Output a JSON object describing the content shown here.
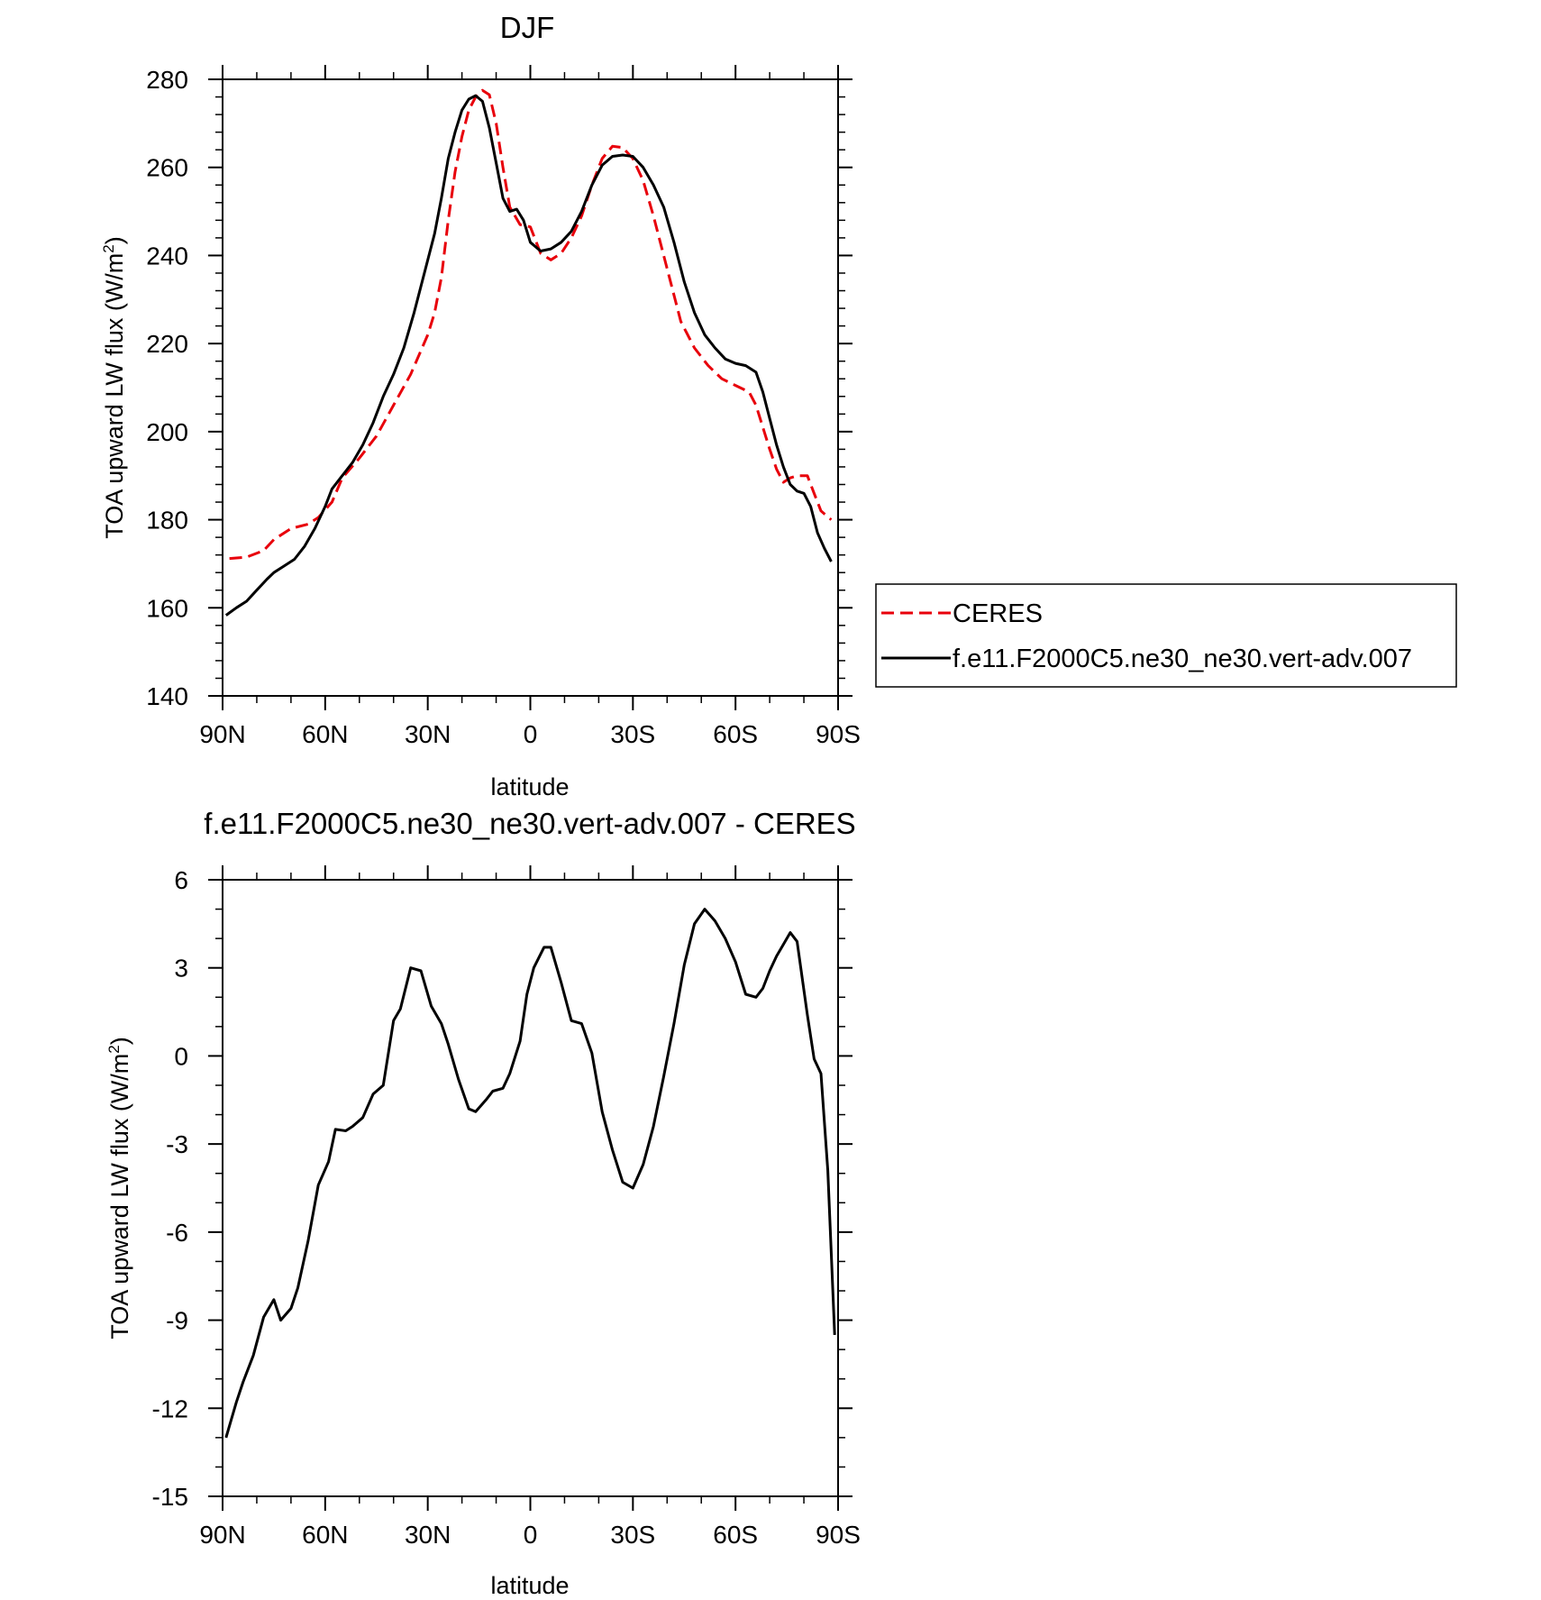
{
  "chart_data": [
    {
      "type": "line",
      "title": "DJF",
      "xlabel": "latitude",
      "ylabel_main": "TOA upward LW flux (W/m",
      "ylabel_sup": "2",
      "ylabel_close": ")",
      "xlim": [
        -90,
        90
      ],
      "ylim": [
        140,
        280
      ],
      "x_ticks": [
        -90,
        -60,
        -30,
        0,
        30,
        60,
        90
      ],
      "x_tick_labels": [
        "90N",
        "60N",
        "30N",
        "0",
        "30S",
        "60S",
        "90S"
      ],
      "y_ticks": [
        140,
        160,
        180,
        200,
        220,
        240,
        260,
        280
      ],
      "y_tick_labels": [
        "140",
        "160",
        "180",
        "200",
        "220",
        "240",
        "260",
        "280"
      ],
      "legend_position": "right",
      "series": [
        {
          "name": "CERES",
          "color": "#e8000b",
          "dash": "dashed",
          "x": [
            -88,
            -83,
            -78,
            -75,
            -70,
            -65,
            -62,
            -58,
            -55,
            -50,
            -45,
            -40,
            -35,
            -30,
            -28,
            -26,
            -24,
            -22,
            -20,
            -18,
            -16,
            -14,
            -12,
            -10,
            -8,
            -6,
            -3,
            0,
            3,
            6,
            9,
            12,
            15,
            18,
            21,
            24,
            27,
            30,
            33,
            36,
            40,
            44,
            48,
            52,
            56,
            60,
            64,
            66,
            68,
            70,
            72,
            74,
            76,
            78,
            81,
            83,
            85,
            88
          ],
          "y": [
            171.2,
            171.5,
            173,
            175.5,
            178,
            179,
            180.5,
            184,
            189.5,
            194,
            199,
            206,
            213,
            222,
            227,
            235,
            248,
            259,
            267,
            273,
            276,
            277.5,
            276.5,
            270,
            260,
            251,
            247,
            246.5,
            240.5,
            239,
            240.5,
            244,
            249,
            256,
            262,
            264.8,
            264.5,
            262,
            257,
            249,
            237,
            225,
            219,
            215,
            212,
            210.5,
            209,
            206,
            201,
            196,
            191.5,
            188.5,
            189.5,
            190,
            190,
            186,
            182,
            180
          ]
        },
        {
          "name": "f.e11.F2000C5.ne30_ne30.vert-adv.007",
          "color": "#000000",
          "dash": "solid",
          "x": [
            -89,
            -86,
            -83,
            -80,
            -77,
            -75,
            -72,
            -69,
            -66,
            -63,
            -60,
            -58,
            -55,
            -52,
            -49,
            -46,
            -43,
            -40,
            -37,
            -34,
            -31,
            -28,
            -26,
            -24,
            -22,
            -20,
            -18,
            -16,
            -14,
            -12,
            -10,
            -8,
            -6,
            -4,
            -2,
            0,
            3,
            6,
            9,
            12,
            15,
            18,
            21,
            24,
            27,
            30,
            33,
            36,
            39,
            42,
            45,
            48,
            51,
            54,
            57,
            60,
            63,
            66,
            68,
            70,
            72,
            74,
            76,
            78,
            80,
            82,
            84,
            86,
            88
          ],
          "y": [
            158.3,
            160,
            161.5,
            164,
            166.5,
            168,
            169.5,
            171,
            174,
            178,
            183,
            187,
            190,
            193,
            197,
            202,
            208,
            213,
            219,
            227,
            236,
            245,
            253,
            262,
            268,
            273,
            275.5,
            276.3,
            275,
            269,
            261,
            253,
            250,
            250.5,
            248,
            243,
            241,
            241.5,
            243,
            245.5,
            250,
            256,
            260.5,
            262.5,
            262.8,
            262.5,
            260,
            256,
            251,
            243,
            234,
            227,
            222,
            219,
            216.5,
            215.5,
            215,
            213.5,
            209,
            203,
            197,
            192,
            188,
            186.5,
            186,
            183,
            177,
            173.5,
            170.5
          ]
        }
      ]
    },
    {
      "type": "line",
      "title": "f.e11.F2000C5.ne30_ne30.vert-adv.007 - CERES",
      "xlabel": "latitude",
      "ylabel_main": "TOA upward LW flux (W/m",
      "ylabel_sup": "2",
      "ylabel_close": ")",
      "xlim": [
        -90,
        90
      ],
      "ylim": [
        -15,
        6
      ],
      "x_ticks": [
        -90,
        -60,
        -30,
        0,
        30,
        60,
        90
      ],
      "x_tick_labels": [
        "90N",
        "60N",
        "30N",
        "0",
        "30S",
        "60S",
        "90S"
      ],
      "y_ticks": [
        -15,
        -12,
        -9,
        -6,
        -3,
        0,
        3,
        6
      ],
      "y_tick_labels": [
        "-15",
        "-12",
        "-9",
        "-6",
        "-3",
        "0",
        "3",
        "6"
      ],
      "series": [
        {
          "color": "#000000",
          "dash": "solid",
          "x": [
            -89,
            -86,
            -84,
            -81,
            -78,
            -75,
            -73,
            -70,
            -68,
            -65,
            -62,
            -59,
            -57,
            -54,
            -52,
            -49,
            -46,
            -43,
            -40,
            -38,
            -35,
            -32,
            -29,
            -26,
            -24,
            -21,
            -18,
            -16,
            -13,
            -11,
            -8,
            -6,
            -3,
            -1,
            1,
            4,
            6,
            9,
            12,
            15,
            18,
            21,
            24,
            27,
            30,
            33,
            36,
            39,
            42,
            45,
            48,
            51,
            54,
            57,
            60,
            63,
            66,
            68,
            70,
            72,
            74,
            76,
            78,
            81,
            83,
            85,
            87,
            89
          ],
          "y": [
            -13,
            -11.8,
            -11.1,
            -10.2,
            -8.9,
            -8.3,
            -9,
            -8.6,
            -7.9,
            -6.3,
            -4.4,
            -3.6,
            -2.5,
            -2.55,
            -2.4,
            -2.1,
            -1.3,
            -1,
            1.2,
            1.6,
            3,
            2.9,
            1.7,
            1.1,
            0.4,
            -0.8,
            -1.8,
            -1.9,
            -1.5,
            -1.2,
            -1.1,
            -0.6,
            0.5,
            2.1,
            3,
            3.7,
            3.7,
            2.5,
            1.2,
            1.1,
            0.1,
            -1.9,
            -3.2,
            -4.3,
            -4.5,
            -3.7,
            -2.4,
            -0.7,
            1.1,
            3.1,
            4.5,
            5,
            4.6,
            4.0,
            3.2,
            2.1,
            2,
            2.3,
            2.9,
            3.4,
            3.8,
            4.2,
            3.9,
            1.4,
            -0.1,
            -0.6,
            -3.9,
            -9.5
          ]
        }
      ]
    }
  ]
}
